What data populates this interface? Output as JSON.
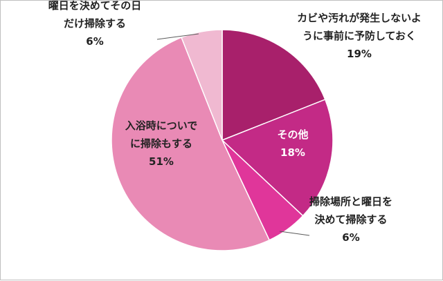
{
  "chart_data": {
    "type": "pie",
    "start": "12 o'clock, clockwise",
    "slices": [
      {
        "label_lines": [
          "カビや汚れが発生しないよ",
          "うに事前に予防しておく"
        ],
        "value": 19,
        "value_text": "19%",
        "color": "#a8206b"
      },
      {
        "label_lines": [
          "その他"
        ],
        "value": 18,
        "value_text": "18%",
        "color": "#c32a86"
      },
      {
        "label_lines": [
          "掃除場所と曜日を",
          "決めて掃除する"
        ],
        "value": 6,
        "value_text": "6%",
        "color": "#e0369a"
      },
      {
        "label_lines": [
          "入浴時についで",
          "に掃除もする"
        ],
        "value": 51,
        "value_text": "51%",
        "color": "#e98ab5"
      },
      {
        "label_lines": [
          "曜日を決めてその日",
          "だけ掃除する"
        ],
        "value": 6,
        "value_text": "6%",
        "color": "#f0b9d1"
      }
    ]
  }
}
